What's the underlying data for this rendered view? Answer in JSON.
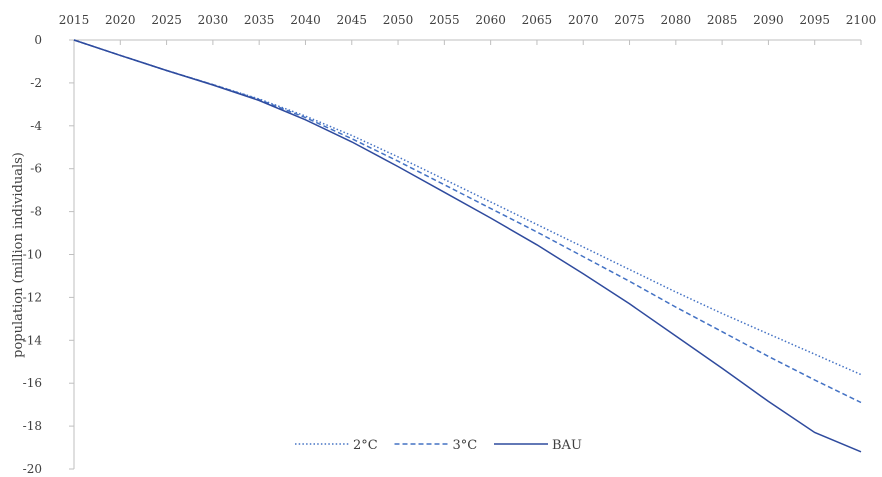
{
  "chart_data": {
    "type": "line",
    "title": "",
    "xlabel": "",
    "ylabel": "population (million individuals)",
    "x": [
      2015,
      2020,
      2025,
      2030,
      2035,
      2040,
      2045,
      2050,
      2055,
      2060,
      2065,
      2070,
      2075,
      2080,
      2085,
      2090,
      2095,
      2100
    ],
    "x_ticks": [
      "2015",
      "2020",
      "2025",
      "2030",
      "2035",
      "2040",
      "2045",
      "2050",
      "2055",
      "2060",
      "2065",
      "2070",
      "2075",
      "2080",
      "2085",
      "2090",
      "2095",
      "2100"
    ],
    "y_ticks": [
      "0",
      "-2",
      "-4",
      "-6",
      "-8",
      "-10",
      "-12",
      "-14",
      "-16",
      "-18",
      "-20"
    ],
    "xlim": [
      2015,
      2100
    ],
    "ylim": [
      -20,
      0
    ],
    "x_axis_position": "top",
    "grid": false,
    "legend_position": "bottom-center",
    "series": [
      {
        "name": "2°C",
        "style": "dotted",
        "color": "#4472c4",
        "values": [
          0,
          -0.72,
          -1.42,
          -2.08,
          -2.75,
          -3.55,
          -4.45,
          -5.45,
          -6.5,
          -7.55,
          -8.6,
          -9.65,
          -10.7,
          -11.75,
          -12.75,
          -13.7,
          -14.65,
          -15.6
        ]
      },
      {
        "name": "3°C",
        "style": "dashed",
        "color": "#4472c4",
        "values": [
          0,
          -0.72,
          -1.42,
          -2.08,
          -2.78,
          -3.62,
          -4.6,
          -5.65,
          -6.75,
          -7.85,
          -8.95,
          -10.1,
          -11.25,
          -12.45,
          -13.6,
          -14.75,
          -15.85,
          -16.9
        ]
      },
      {
        "name": "BAU",
        "style": "solid",
        "color": "#2f4b9e",
        "values": [
          0,
          -0.72,
          -1.42,
          -2.1,
          -2.82,
          -3.72,
          -4.75,
          -5.9,
          -7.1,
          -8.3,
          -9.55,
          -10.9,
          -12.3,
          -13.8,
          -15.3,
          -16.85,
          -18.3,
          -19.2
        ]
      }
    ]
  }
}
